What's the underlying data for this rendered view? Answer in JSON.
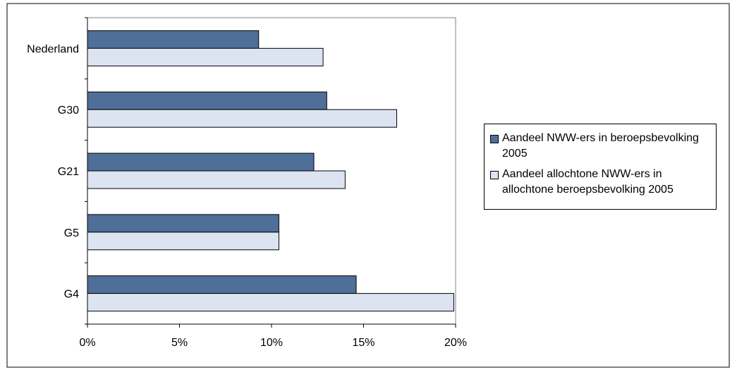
{
  "chart_data": {
    "type": "bar",
    "orientation": "horizontal",
    "categories": [
      "Nederland",
      "G30",
      "G21",
      "G5",
      "G4"
    ],
    "series": [
      {
        "name": "Aandeel NWW-ers in beroepsbevolking 2005",
        "values": [
          9.3,
          13.0,
          12.3,
          10.4,
          14.6
        ],
        "color": "#4f6f98"
      },
      {
        "name": "Aandeel allochtone NWW-ers in allochtone beroepsbevolking 2005",
        "values": [
          12.8,
          16.8,
          14.0,
          10.4,
          19.9
        ],
        "color": "#dce4f2"
      }
    ],
    "x_ticks": [
      "0%",
      "5%",
      "10%",
      "15%",
      "20%"
    ],
    "xlim": [
      0,
      20
    ],
    "x_unit": "%",
    "title": "",
    "xlabel": "",
    "ylabel": "",
    "grid": false,
    "legend_position": "right"
  }
}
